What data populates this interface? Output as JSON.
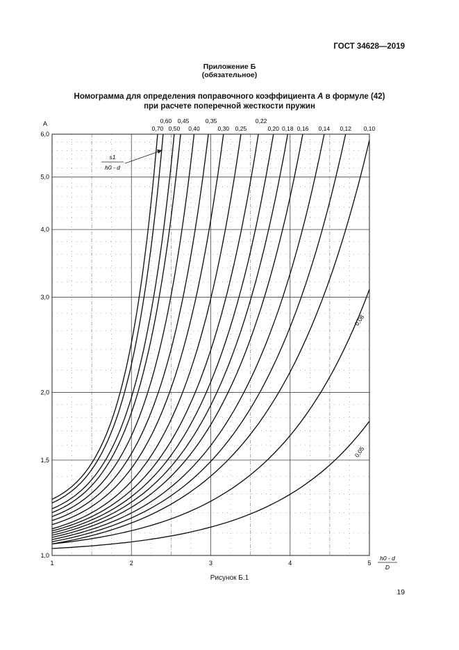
{
  "header": {
    "standard": "ГОСТ 34628—2019"
  },
  "appendix": {
    "title": "Приложение Б",
    "subtitle": "(обязательное)"
  },
  "figure": {
    "title_line1_pre": "Номограмма для определения поправочного коэффициента ",
    "title_line1_var": "A",
    "title_line1_post": " в формуле (42)",
    "title_line2": "при расчете поперечной жесткости пружин",
    "caption": "Рисунок Б.1"
  },
  "page": {
    "number": "19"
  },
  "chart_data": {
    "type": "line",
    "title": "",
    "ylabel": "A",
    "xlabel_numerator": "h0 - d",
    "xlabel_denominator": "D",
    "x_ticks": [
      "1",
      "2",
      "3",
      "4",
      "5"
    ],
    "y_ticks": [
      "1,0",
      "1,5",
      "2,0",
      "3,0",
      "4,0",
      "5,0",
      "6,0"
    ],
    "xlim": [
      1,
      5
    ],
    "ylim": [
      1.0,
      6.0
    ],
    "y_scale": "log",
    "grid": true,
    "parameter_label_numerator": "s1",
    "parameter_label_denominator": "h0 - d",
    "series": [
      {
        "name": "0,70",
        "start": [
          1.0,
          1.27
        ],
        "end": [
          2.33,
          6.0
        ]
      },
      {
        "name": "0,60",
        "start": [
          1.0,
          1.25
        ],
        "end": [
          2.4,
          6.0
        ]
      },
      {
        "name": "0,50",
        "start": [
          1.0,
          1.22
        ],
        "end": [
          2.54,
          6.0
        ]
      },
      {
        "name": "0,45",
        "start": [
          1.0,
          1.2
        ],
        "end": [
          2.62,
          6.0
        ]
      },
      {
        "name": "0,40",
        "start": [
          1.0,
          1.18
        ],
        "end": [
          2.79,
          6.0
        ]
      },
      {
        "name": "0,35",
        "start": [
          1.0,
          1.16
        ],
        "end": [
          2.97,
          6.0
        ]
      },
      {
        "name": "0,30",
        "start": [
          1.0,
          1.14
        ],
        "end": [
          3.16,
          6.0
        ]
      },
      {
        "name": "0,25",
        "start": [
          1.0,
          1.12
        ],
        "end": [
          3.38,
          6.0
        ]
      },
      {
        "name": "0,22",
        "start": [
          1.0,
          1.11
        ],
        "end": [
          3.6,
          6.0
        ]
      },
      {
        "name": "0,20",
        "start": [
          1.0,
          1.1
        ],
        "end": [
          3.79,
          6.0
        ]
      },
      {
        "name": "0,18",
        "start": [
          1.0,
          1.09
        ],
        "end": [
          3.97,
          6.0
        ]
      },
      {
        "name": "0,16",
        "start": [
          1.0,
          1.08
        ],
        "end": [
          4.16,
          6.0
        ]
      },
      {
        "name": "0,14",
        "start": [
          1.0,
          1.07
        ],
        "end": [
          4.43,
          6.0
        ]
      },
      {
        "name": "0,12",
        "start": [
          1.0,
          1.06
        ],
        "end": [
          4.7,
          6.0
        ]
      },
      {
        "name": "0,10",
        "start": [
          1.0,
          1.05
        ],
        "end": [
          5.0,
          5.85
        ]
      },
      {
        "name": "0,08",
        "start": [
          1.0,
          1.05
        ],
        "end": [
          5.0,
          3.1
        ]
      },
      {
        "name": "0,05",
        "start": [
          1.0,
          1.03
        ],
        "end": [
          5.0,
          1.77
        ]
      }
    ]
  }
}
